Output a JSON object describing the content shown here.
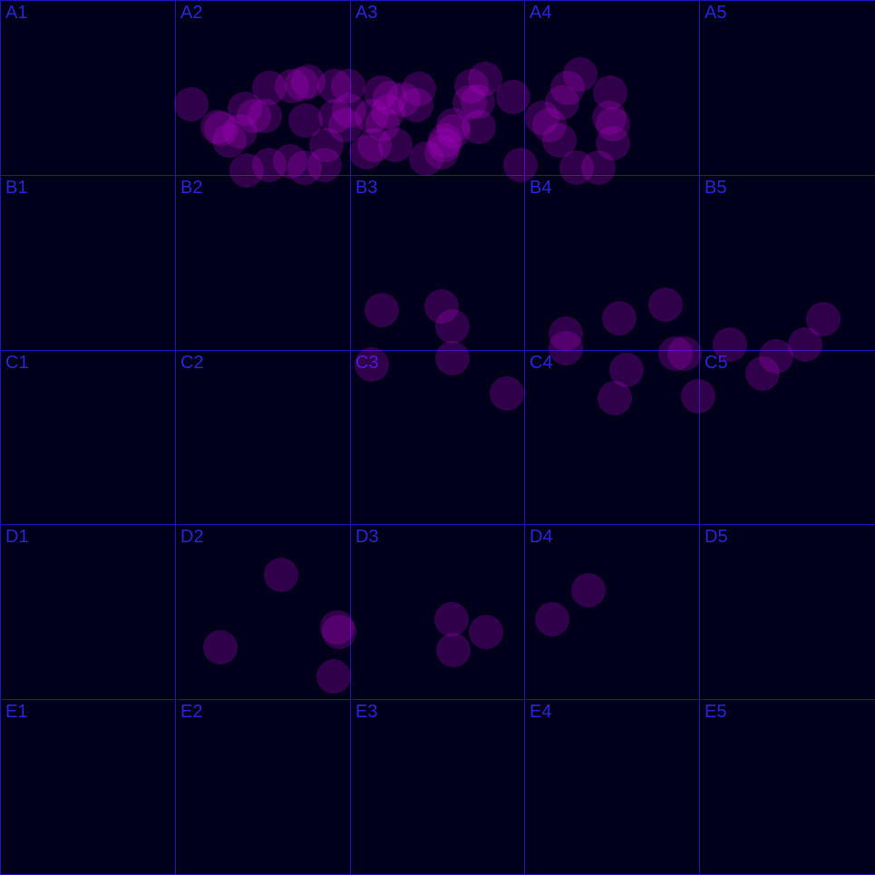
{
  "grid": {
    "rows": [
      "A",
      "B",
      "C",
      "D",
      "E"
    ],
    "cols": [
      "1",
      "2",
      "3",
      "4",
      "5"
    ],
    "cells": [
      [
        "A1",
        "A2",
        "A3",
        "A4",
        "A5"
      ],
      [
        "B1",
        "B2",
        "B3",
        "B4",
        "B5"
      ],
      [
        "C1",
        "C2",
        "C3",
        "C4",
        "C5"
      ],
      [
        "D1",
        "D2",
        "D3",
        "D4",
        "D5"
      ],
      [
        "E1",
        "E2",
        "E3",
        "E4",
        "E5"
      ]
    ]
  },
  "colors": {
    "background": "#00001a",
    "grid_line": "#1a17b8",
    "label": "#2a26d6",
    "dot": "#b000c8"
  }
}
